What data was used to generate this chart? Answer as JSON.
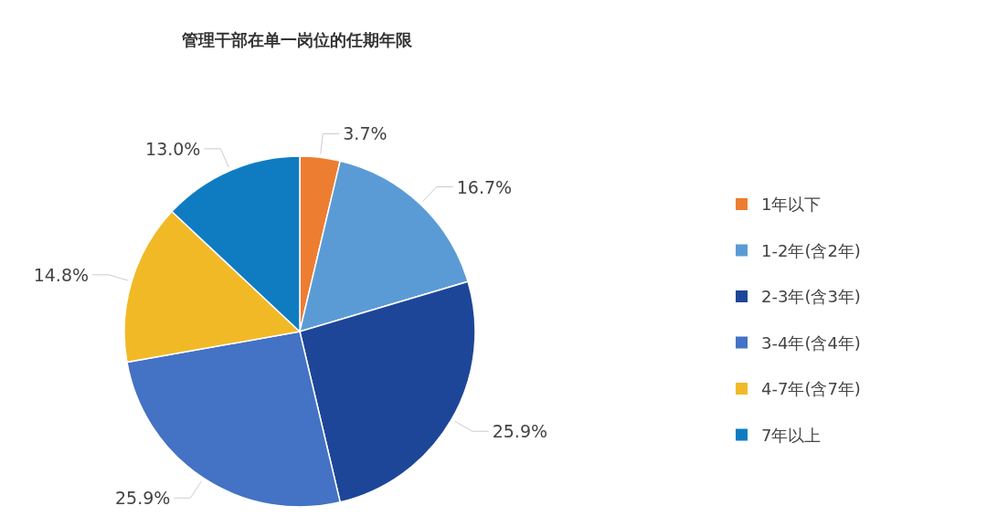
{
  "chart_data": {
    "type": "pie",
    "title": "管理干部在单一岗位的任期年限",
    "categories": [
      "1年以下",
      "1-2年(含2年)",
      "2-3年(含3年)",
      "3-4年(含4年)",
      "4-7年(含7年)",
      "7年以上"
    ],
    "values": [
      3.7,
      16.7,
      25.9,
      25.9,
      14.8,
      13.0
    ],
    "value_labels": [
      "3.7%",
      "16.7%",
      "25.9%",
      "25.9%",
      "14.8%",
      "13.0%"
    ],
    "colors": [
      "#ed7d31",
      "#5b9bd5",
      "#1e4698",
      "#4472c4",
      "#f2b927",
      "#0f7cc1"
    ],
    "legend": "right"
  }
}
